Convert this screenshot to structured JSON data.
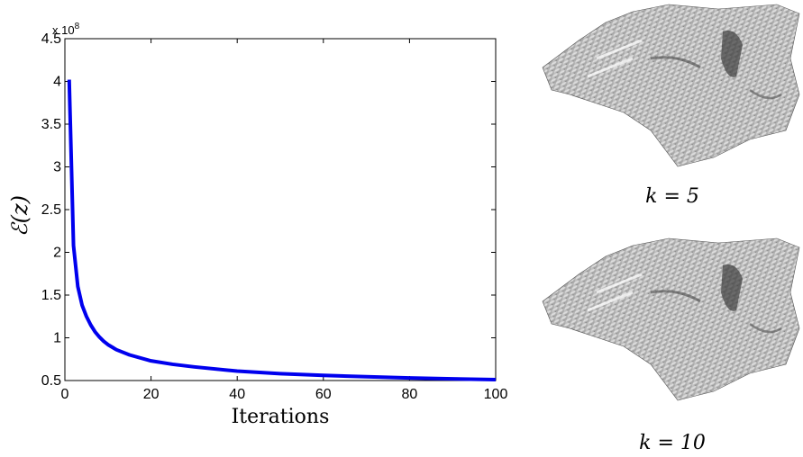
{
  "chart_data": {
    "type": "line",
    "xlabel": "Iterations",
    "ylabel": "ℰ(z)",
    "exponent_base": "x 10",
    "exponent_power": "8",
    "xlim": [
      0,
      100
    ],
    "ylim": [
      0.5,
      4.5
    ],
    "xticks": [
      "0",
      "20",
      "40",
      "60",
      "80",
      "100"
    ],
    "yticks": [
      "0.5",
      "1",
      "1.5",
      "2",
      "2.5",
      "3",
      "3.5",
      "4",
      "4.5"
    ],
    "grid": false,
    "series": [
      {
        "color": "#0000ee",
        "x": [
          1,
          2,
          3,
          4,
          5,
          6,
          7,
          8,
          9,
          10,
          12,
          15,
          20,
          25,
          30,
          40,
          50,
          60,
          70,
          80,
          90,
          100
        ],
        "y": [
          4.02,
          2.08,
          1.6,
          1.38,
          1.25,
          1.15,
          1.07,
          1.01,
          0.96,
          0.92,
          0.86,
          0.8,
          0.73,
          0.69,
          0.66,
          0.61,
          0.58,
          0.56,
          0.545,
          0.53,
          0.52,
          0.51
        ]
      }
    ]
  },
  "renders": [
    {
      "caption": "k = 5",
      "icon": "face-depth-render-icon"
    },
    {
      "caption": "k = 10",
      "icon": "face-depth-render-icon"
    }
  ]
}
